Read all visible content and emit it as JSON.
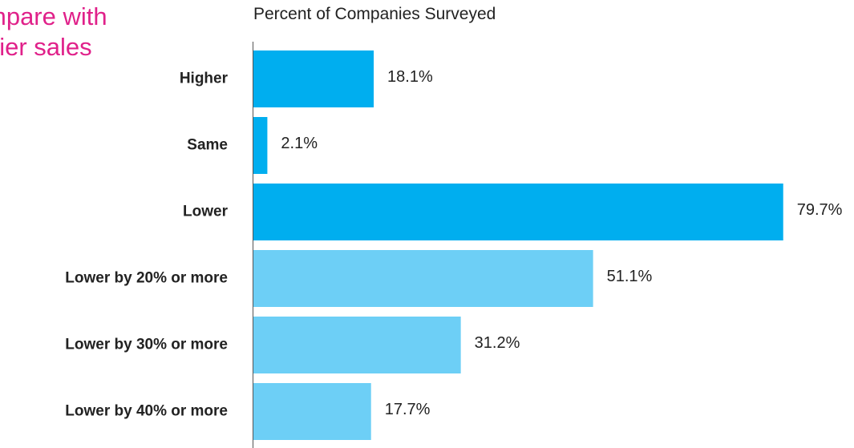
{
  "side_title": {
    "line1": "mpare with",
    "line2": "rlier sales"
  },
  "chart_data": {
    "type": "bar",
    "orientation": "horizontal",
    "title": "Percent of Companies Surveyed",
    "categories": [
      "Higher",
      "Same",
      "Lower",
      "Lower by 20% or more",
      "Lower by 30% or more",
      "Lower by 40% or more"
    ],
    "values": [
      18.1,
      2.1,
      79.7,
      51.1,
      31.2,
      17.7
    ],
    "value_labels": [
      "18.1%",
      "2.1%",
      "79.7%",
      "51.1%",
      "31.2%",
      "17.7%"
    ],
    "bar_colors": [
      "#00aeef",
      "#00aeef",
      "#00aeef",
      "#6dcff6",
      "#6dcff6",
      "#6dcff6"
    ],
    "xlim": [
      0,
      100
    ],
    "grid": false,
    "legend": "none"
  }
}
